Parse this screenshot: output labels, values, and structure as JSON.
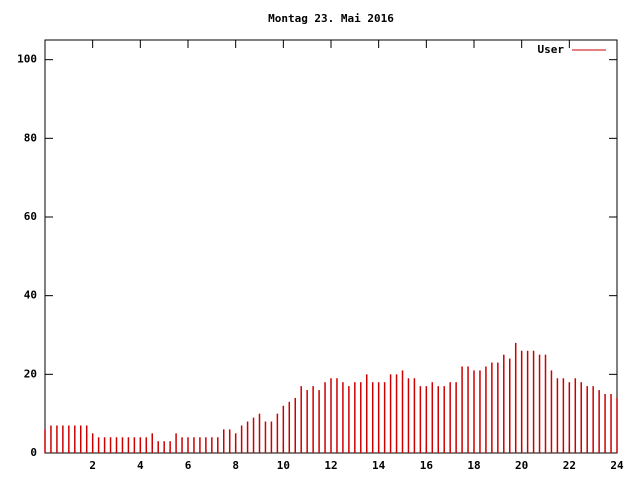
{
  "chart_data": {
    "type": "impulse",
    "title": "Montag 23. Mai 2016",
    "x": [
      0,
      0.25,
      0.5,
      0.75,
      1,
      1.25,
      1.5,
      1.75,
      2,
      2.25,
      2.5,
      2.75,
      3,
      3.25,
      3.5,
      3.75,
      4,
      4.25,
      4.5,
      4.75,
      5,
      5.25,
      5.5,
      5.75,
      6,
      6.25,
      6.5,
      6.75,
      7,
      7.25,
      7.5,
      7.75,
      8,
      8.25,
      8.5,
      8.75,
      9,
      9.25,
      9.5,
      9.75,
      10,
      10.25,
      10.5,
      10.75,
      11,
      11.25,
      11.5,
      11.75,
      12,
      12.25,
      12.5,
      12.75,
      13,
      13.25,
      13.5,
      13.75,
      14,
      14.25,
      14.5,
      14.75,
      15,
      15.25,
      15.5,
      15.75,
      16,
      16.25,
      16.5,
      16.75,
      17,
      17.25,
      17.5,
      17.75,
      18,
      18.25,
      18.5,
      18.75,
      19,
      19.25,
      19.5,
      19.75,
      20,
      20.25,
      20.5,
      20.75,
      21,
      21.25,
      21.5,
      21.75,
      22,
      22.25,
      22.5,
      22.75,
      23,
      23.25,
      23.5,
      23.75,
      24
    ],
    "series": [
      {
        "name": "User",
        "color": "#cc0000",
        "values": [
          6,
          7,
          7,
          7,
          7,
          7,
          7,
          7,
          5,
          4,
          4,
          4,
          4,
          4,
          4,
          4,
          4,
          4,
          5,
          3,
          3,
          3,
          5,
          4,
          4,
          4,
          4,
          4,
          4,
          4,
          6,
          6,
          5,
          7,
          8,
          9,
          10,
          8,
          8,
          10,
          12,
          13,
          14,
          17,
          16,
          17,
          16,
          18,
          19,
          19,
          18,
          17,
          18,
          18,
          20,
          18,
          18,
          18,
          20,
          20,
          21,
          19,
          19,
          17,
          17,
          18,
          17,
          17,
          18,
          18,
          22,
          22,
          21,
          21,
          22,
          23,
          23,
          25,
          24,
          28,
          26,
          26,
          26,
          25,
          25,
          21,
          19,
          19,
          18,
          19,
          18,
          17,
          17,
          16,
          15,
          15,
          14
        ]
      }
    ],
    "xlim": [
      0,
      24
    ],
    "xticks": [
      2,
      4,
      6,
      8,
      10,
      12,
      14,
      16,
      18,
      20,
      22,
      24
    ],
    "ylim": [
      0,
      105
    ],
    "yticks": [
      0,
      20,
      40,
      60,
      80,
      100
    ],
    "legend": "upper right"
  }
}
